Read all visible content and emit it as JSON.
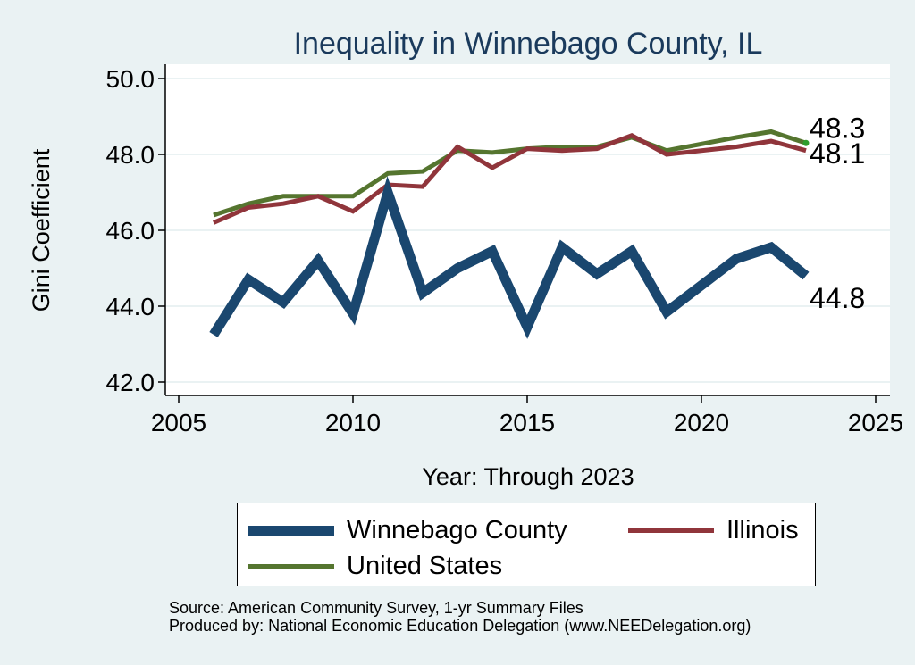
{
  "chart_data": {
    "type": "line",
    "title": "Inequality in Winnebago County, IL",
    "xlabel": "Year: Through 2023",
    "ylabel": "Gini Coefficient",
    "xlim": [
      2005,
      2025
    ],
    "ylim": [
      42.0,
      50.0
    ],
    "xticks": [
      2005,
      2010,
      2015,
      2020,
      2025
    ],
    "yticks": [
      "42.0",
      "44.0",
      "46.0",
      "48.0",
      "50.0"
    ],
    "yticks_values": [
      42.0,
      44.0,
      46.0,
      48.0,
      50.0
    ],
    "grid": true,
    "legend_position": "bottom",
    "x": [
      2006,
      2007,
      2008,
      2009,
      2010,
      2011,
      2012,
      2013,
      2014,
      2015,
      2016,
      2017,
      2018,
      2019,
      2021,
      2022,
      2023
    ],
    "series": [
      {
        "name": "Winnebago County",
        "color": "#1a476f",
        "values": [
          43.25,
          44.7,
          44.1,
          45.2,
          43.8,
          47.0,
          44.35,
          45.0,
          45.45,
          43.45,
          45.55,
          44.85,
          45.45,
          43.85,
          45.25,
          45.55,
          44.8
        ],
        "end_label": "44.8"
      },
      {
        "name": "Illinois",
        "color": "#90353b",
        "values": [
          46.2,
          46.6,
          46.7,
          46.9,
          46.5,
          47.2,
          47.15,
          48.2,
          47.65,
          48.15,
          48.1,
          48.15,
          48.5,
          48.0,
          48.2,
          48.35,
          48.1
        ],
        "end_label": "48.1"
      },
      {
        "name": "United States",
        "color": "#55752f",
        "values": [
          46.4,
          46.7,
          46.9,
          46.9,
          46.9,
          47.5,
          47.55,
          48.1,
          48.05,
          48.15,
          48.2,
          48.2,
          48.45,
          48.1,
          48.45,
          48.6,
          48.3
        ],
        "end_label": "48.3"
      }
    ]
  },
  "source_note": "Source: American Community Survey, 1-yr Summary Files",
  "producer_note": "Produced by: National Economic Education Delegation (www.NEEDelegation.org)"
}
